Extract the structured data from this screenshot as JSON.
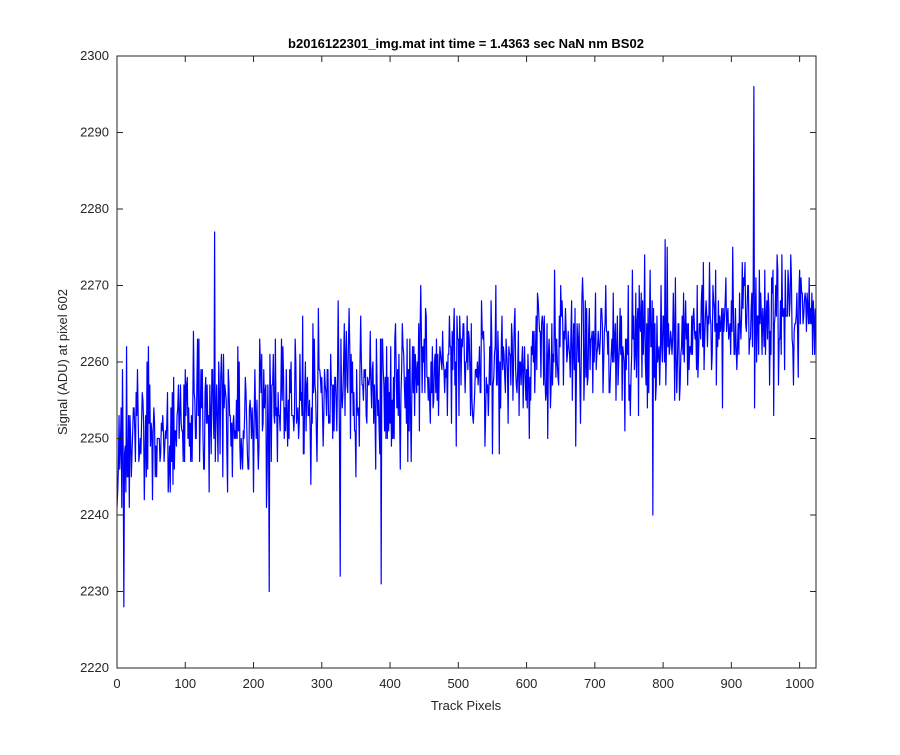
{
  "chart_data": {
    "type": "line",
    "title": "b2016122301_img.mat int time = 1.4363 sec  NaN nm BS02",
    "xlabel": "Track Pixels",
    "ylabel": "Signal (ADU) at pixel 602",
    "xlim": [
      0,
      1024
    ],
    "ylim": [
      2220,
      2300
    ],
    "xticks": [
      0,
      100,
      200,
      300,
      400,
      500,
      600,
      700,
      800,
      900,
      1000
    ],
    "yticks": [
      2220,
      2230,
      2240,
      2250,
      2260,
      2270,
      2280,
      2290,
      2300
    ],
    "grid": false,
    "legend": "none",
    "series": [
      {
        "color": "#0000ff",
        "notable_points": [
          {
            "x": 1,
            "y": 2243
          },
          {
            "x": 10,
            "y": 2228
          },
          {
            "x": 143,
            "y": 2277
          },
          {
            "x": 223,
            "y": 2230
          },
          {
            "x": 327,
            "y": 2232
          },
          {
            "x": 387,
            "y": 2231
          },
          {
            "x": 785,
            "y": 2240
          },
          {
            "x": 933,
            "y": 2296
          }
        ]
      }
    ]
  }
}
